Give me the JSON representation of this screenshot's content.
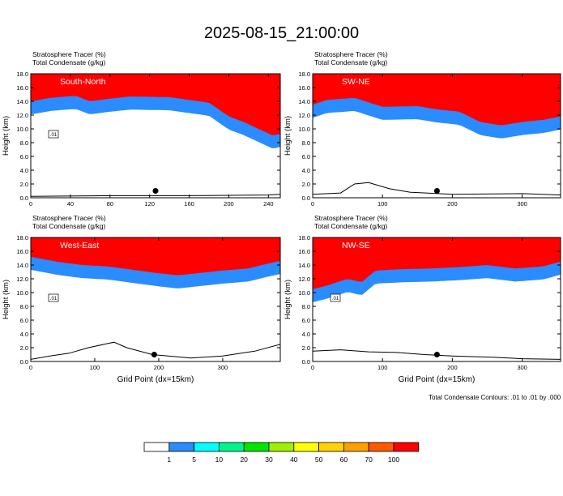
{
  "title": "2025-08-15_21:00:00",
  "colorbar": {
    "colors": [
      "#ffffff",
      "#2a8cff",
      "#00ffff",
      "#00f58c",
      "#00e600",
      "#a0f000",
      "#ffff00",
      "#ffd200",
      "#ffa000",
      "#ff5a00",
      "#ff0000"
    ],
    "labels": [
      "1",
      "5",
      "10",
      "20",
      "30",
      "40",
      "50",
      "60",
      "70",
      "100"
    ]
  },
  "footnote": "Total Condensate Contours: .01 to .01 by .000",
  "chart_data": [
    {
      "type": "heatmap",
      "panel": "top-left",
      "title": "South-North",
      "subtitle_1": "Stratosphere Tracer   (%)",
      "subtitle_2": "Total Condensate   (g/kg)",
      "ylabel": "Height (km)",
      "xlabel": "",
      "xlim": [
        0,
        252
      ],
      "ylim": [
        0,
        18
      ],
      "xticks": [
        0,
        40,
        80,
        120,
        160,
        200,
        240
      ],
      "yticks": [
        "0.0",
        "2.0",
        "4.0",
        "6.0",
        "8.0",
        "10.0",
        "12.0",
        "14.0",
        "16.0",
        "18.0"
      ],
      "tropopause_km": {
        "x": [
          0,
          20,
          45,
          60,
          75,
          100,
          140,
          180,
          200,
          215,
          230,
          245,
          252
        ],
        "y": [
          14.0,
          14.5,
          14.8,
          14.0,
          14.3,
          14.7,
          14.6,
          13.8,
          11.8,
          11.0,
          10.0,
          9.0,
          9.3
        ]
      },
      "terrain_km": {
        "x": [
          0,
          80,
          160,
          240,
          252
        ],
        "y": [
          0.2,
          0.3,
          0.3,
          0.4,
          0.5
        ]
      },
      "marker": {
        "x": 126,
        "y": 1.0
      },
      "contour_label": ".01"
    },
    {
      "type": "heatmap",
      "panel": "top-right",
      "title": "SW-NE",
      "subtitle_1": "Stratosphere Tracer   (%)",
      "subtitle_2": "Total Condensate   (g/kg)",
      "ylabel": "Height (km)",
      "xlabel": "",
      "xlim": [
        0,
        355
      ],
      "ylim": [
        0,
        18
      ],
      "xticks": [
        0,
        100,
        200,
        300
      ],
      "yticks": [
        "0.0",
        "2.0",
        "4.0",
        "6.0",
        "8.0",
        "10.0",
        "12.0",
        "14.0",
        "16.0",
        "18.0"
      ],
      "tropopause_km": {
        "x": [
          0,
          20,
          60,
          100,
          150,
          180,
          210,
          240,
          270,
          300,
          330,
          355
        ],
        "y": [
          13.5,
          14.2,
          14.5,
          13.2,
          13.3,
          12.8,
          12.5,
          11.0,
          10.5,
          11.0,
          11.3,
          11.8
        ]
      },
      "terrain_km": {
        "x": [
          0,
          40,
          60,
          80,
          110,
          140,
          200,
          300,
          355
        ],
        "y": [
          0.5,
          0.7,
          2.0,
          2.2,
          1.3,
          0.8,
          0.5,
          0.6,
          0.4
        ]
      },
      "marker": {
        "x": 178,
        "y": 1.0
      },
      "contour_label": ""
    },
    {
      "type": "heatmap",
      "panel": "bottom-left",
      "title": "West-East",
      "subtitle_1": "Stratosphere Tracer   (%)",
      "subtitle_2": "Total Condensate   (g/kg)",
      "ylabel": "Height (km)",
      "xlabel": "Grid Point (dx=15km)",
      "xlim": [
        0,
        390
      ],
      "ylim": [
        0,
        18
      ],
      "xticks": [
        0,
        100,
        200,
        300
      ],
      "yticks": [
        "0.0",
        "2.0",
        "4.0",
        "6.0",
        "8.0",
        "10.0",
        "12.0",
        "14.0",
        "16.0",
        "18.0"
      ],
      "tropopause_km": {
        "x": [
          0,
          40,
          80,
          120,
          160,
          200,
          230,
          260,
          300,
          340,
          370,
          390
        ],
        "y": [
          15.2,
          14.5,
          14.0,
          13.8,
          13.3,
          12.8,
          12.5,
          12.8,
          13.2,
          13.5,
          14.2,
          14.6
        ]
      },
      "terrain_km": {
        "x": [
          0,
          30,
          60,
          90,
          130,
          150,
          190,
          250,
          300,
          350,
          390
        ],
        "y": [
          0.3,
          0.8,
          1.2,
          2.0,
          2.8,
          2.0,
          1.0,
          0.5,
          0.8,
          1.5,
          2.5
        ]
      },
      "marker": {
        "x": 193,
        "y": 1.0
      },
      "contour_label": ".01"
    },
    {
      "type": "heatmap",
      "panel": "bottom-right",
      "title": "NW-SE",
      "subtitle_1": "Stratosphere Tracer   (%)",
      "subtitle_2": "Total Condensate   (g/kg)",
      "ylabel": "Height (km)",
      "xlabel": "Grid Point (dx=15km)",
      "xlim": [
        0,
        355
      ],
      "ylim": [
        0,
        18
      ],
      "xticks": [
        0,
        100,
        200,
        300
      ],
      "yticks": [
        "0.0",
        "2.0",
        "4.0",
        "6.0",
        "8.0",
        "10.0",
        "12.0",
        "14.0",
        "16.0",
        "18.0"
      ],
      "tropopause_km": {
        "x": [
          0,
          20,
          50,
          70,
          90,
          130,
          170,
          210,
          250,
          290,
          330,
          355
        ],
        "y": [
          10.5,
          11.0,
          12.0,
          11.5,
          13.2,
          13.4,
          13.5,
          13.7,
          14.0,
          13.5,
          13.8,
          14.5
        ]
      },
      "terrain_km": {
        "x": [
          0,
          40,
          80,
          120,
          160,
          200,
          260,
          300,
          355
        ],
        "y": [
          1.5,
          1.7,
          1.4,
          1.3,
          1.0,
          0.8,
          0.6,
          0.4,
          0.3
        ]
      },
      "marker": {
        "x": 178,
        "y": 1.0
      },
      "contour_label": ".01"
    }
  ]
}
